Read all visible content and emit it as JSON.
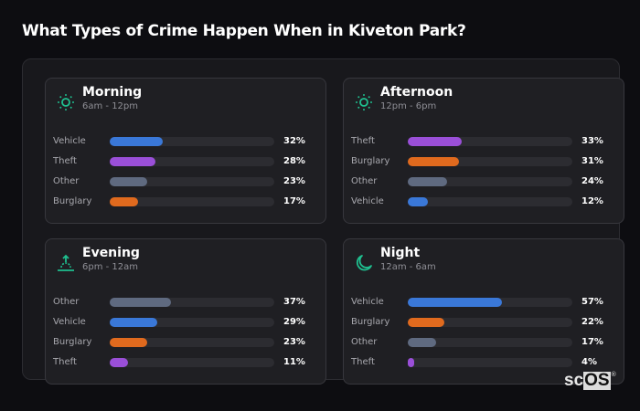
{
  "title": "What Types of Crime Happen When in Kiveton Park?",
  "colors": {
    "Vehicle": "#3a78d8",
    "Theft": "#9a4fd8",
    "Other": "#5f6a80",
    "Burglary": "#e06a1e",
    "accent": "#1fbf8f"
  },
  "cards": [
    {
      "name": "Morning",
      "range": "6am - 12pm",
      "icon": "sun-icon",
      "rows": [
        {
          "label": "Vehicle",
          "pct": "32%",
          "value": 32,
          "color": "#3a78d8"
        },
        {
          "label": "Theft",
          "pct": "28%",
          "value": 28,
          "color": "#9a4fd8"
        },
        {
          "label": "Other",
          "pct": "23%",
          "value": 23,
          "color": "#5f6a80"
        },
        {
          "label": "Burglary",
          "pct": "17%",
          "value": 17,
          "color": "#e06a1e"
        }
      ]
    },
    {
      "name": "Afternoon",
      "range": "12pm - 6pm",
      "icon": "sun-icon",
      "rows": [
        {
          "label": "Theft",
          "pct": "33%",
          "value": 33,
          "color": "#9a4fd8"
        },
        {
          "label": "Burglary",
          "pct": "31%",
          "value": 31,
          "color": "#e06a1e"
        },
        {
          "label": "Other",
          "pct": "24%",
          "value": 24,
          "color": "#5f6a80"
        },
        {
          "label": "Vehicle",
          "pct": "12%",
          "value": 12,
          "color": "#3a78d8"
        }
      ]
    },
    {
      "name": "Evening",
      "range": "6pm - 12am",
      "icon": "sunset-icon",
      "rows": [
        {
          "label": "Other",
          "pct": "37%",
          "value": 37,
          "color": "#5f6a80"
        },
        {
          "label": "Vehicle",
          "pct": "29%",
          "value": 29,
          "color": "#3a78d8"
        },
        {
          "label": "Burglary",
          "pct": "23%",
          "value": 23,
          "color": "#e06a1e"
        },
        {
          "label": "Theft",
          "pct": "11%",
          "value": 11,
          "color": "#9a4fd8"
        }
      ]
    },
    {
      "name": "Night",
      "range": "12am - 6am",
      "icon": "moon-icon",
      "rows": [
        {
          "label": "Vehicle",
          "pct": "57%",
          "value": 57,
          "color": "#3a78d8"
        },
        {
          "label": "Burglary",
          "pct": "22%",
          "value": 22,
          "color": "#e06a1e"
        },
        {
          "label": "Other",
          "pct": "17%",
          "value": 17,
          "color": "#5f6a80"
        },
        {
          "label": "Theft",
          "pct": "4%",
          "value": 4,
          "color": "#9a4fd8"
        }
      ]
    }
  ],
  "watermark": {
    "prefix": "sc",
    "boxed": "OS",
    "reg": "®"
  },
  "chart_data": [
    {
      "type": "bar",
      "orientation": "horizontal",
      "title": "Morning",
      "subtitle": "6am - 12pm",
      "categories": [
        "Vehicle",
        "Theft",
        "Other",
        "Burglary"
      ],
      "values": [
        32,
        28,
        23,
        17
      ],
      "unit": "%",
      "xlim": [
        0,
        100
      ]
    },
    {
      "type": "bar",
      "orientation": "horizontal",
      "title": "Afternoon",
      "subtitle": "12pm - 6pm",
      "categories": [
        "Theft",
        "Burglary",
        "Other",
        "Vehicle"
      ],
      "values": [
        33,
        31,
        24,
        12
      ],
      "unit": "%",
      "xlim": [
        0,
        100
      ]
    },
    {
      "type": "bar",
      "orientation": "horizontal",
      "title": "Evening",
      "subtitle": "6pm - 12am",
      "categories": [
        "Other",
        "Vehicle",
        "Burglary",
        "Theft"
      ],
      "values": [
        37,
        29,
        23,
        11
      ],
      "unit": "%",
      "xlim": [
        0,
        100
      ]
    },
    {
      "type": "bar",
      "orientation": "horizontal",
      "title": "Night",
      "subtitle": "12am - 6am",
      "categories": [
        "Vehicle",
        "Burglary",
        "Other",
        "Theft"
      ],
      "values": [
        57,
        22,
        17,
        4
      ],
      "unit": "%",
      "xlim": [
        0,
        100
      ]
    }
  ]
}
